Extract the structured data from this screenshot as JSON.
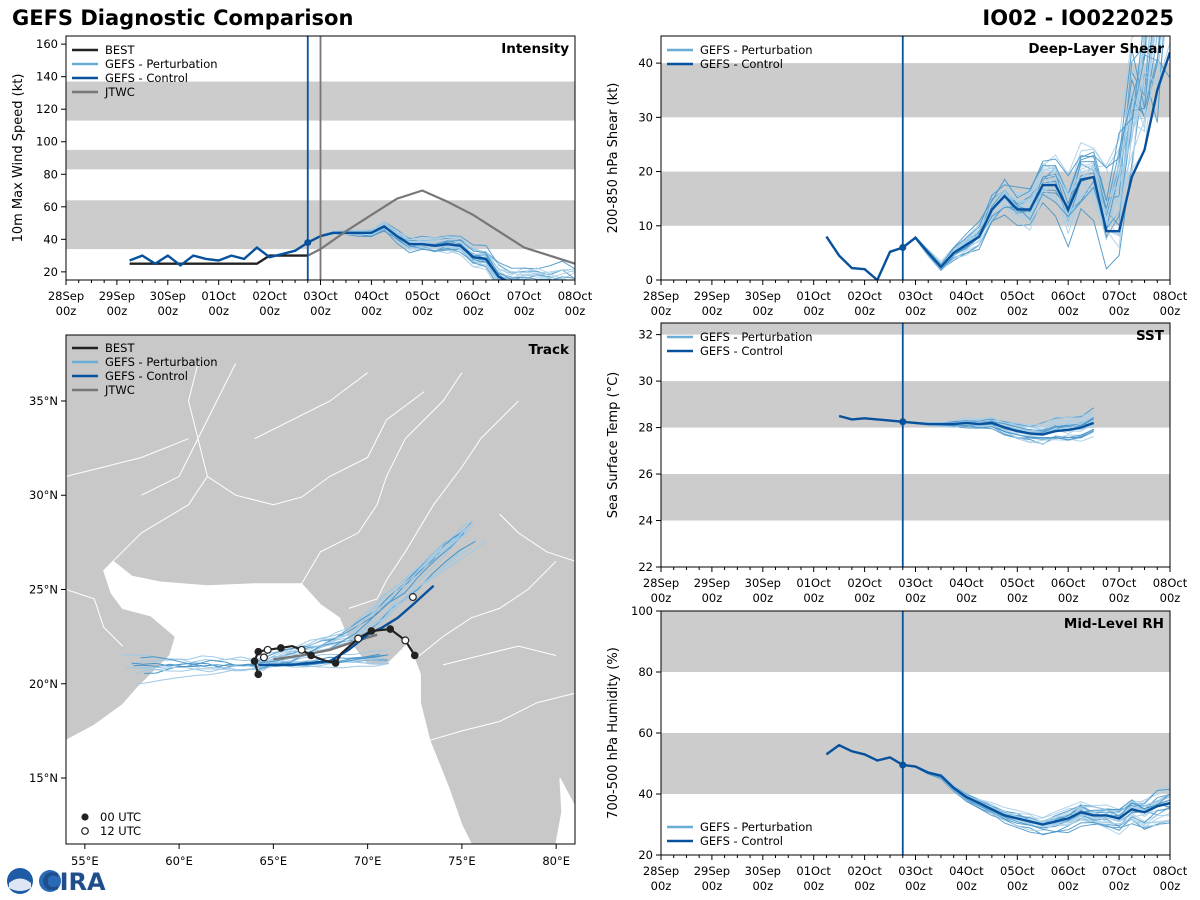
{
  "header": {
    "title": "GEFS Diagnostic Comparison",
    "storm_id": "IO02 - IO022025"
  },
  "logo": {
    "label": "CIRA"
  },
  "time_axis": {
    "labels": [
      "28Sep\n00z",
      "29Sep\n00z",
      "30Sep\n00z",
      "01Oct\n00z",
      "02Oct\n00z",
      "03Oct\n00z",
      "04Oct\n00z",
      "05Oct\n00z",
      "06Oct\n00z",
      "07Oct\n00z",
      "08Oct\n00z"
    ],
    "start_day": 0,
    "end_day": 10,
    "current_day": 4.75
  },
  "colors": {
    "best": "#222222",
    "pert": "#6aaed6",
    "control": "#08519c",
    "jtwc": "#777777",
    "band": "#cccccc",
    "land": "#c8c8c8",
    "vline": "#08519c"
  },
  "chart_data": [
    {
      "id": "intensity",
      "type": "line",
      "title": "Intensity",
      "ylabel": "10m Max Wind Speed (kt)",
      "ylim": [
        15,
        165
      ],
      "yticks": [
        20,
        40,
        60,
        80,
        100,
        120,
        140,
        160
      ],
      "bands": [
        [
          34,
          64
        ],
        [
          83,
          95
        ],
        [
          113,
          137
        ]
      ],
      "legend": [
        "BEST",
        "GEFS - Perturbation",
        "GEFS - Control",
        "JTWC"
      ],
      "series": [
        {
          "name": "BEST",
          "x": [
            1.25,
            2.0,
            3.0,
            3.75,
            4.0,
            4.25,
            4.5,
            4.75
          ],
          "y": [
            25,
            25,
            25,
            25,
            30,
            30,
            30,
            30
          ]
        },
        {
          "name": "GEFS - Control",
          "x": [
            1.25,
            1.5,
            1.75,
            2.0,
            2.25,
            2.5,
            2.75,
            3.0,
            3.25,
            3.5,
            3.75,
            4.0,
            4.25,
            4.5,
            4.75,
            5.0,
            5.25,
            5.5,
            5.75,
            6.0,
            6.25,
            6.5,
            6.75,
            7.0,
            7.25,
            7.5,
            7.75,
            8.0,
            8.25,
            8.5,
            8.75,
            9.0,
            9.25,
            9.5,
            9.75,
            10.0
          ],
          "y": [
            27,
            30,
            25,
            30,
            24,
            30,
            28,
            27,
            30,
            28,
            35,
            29,
            31,
            33,
            38,
            42,
            44,
            44,
            44,
            44,
            48,
            42,
            37,
            37,
            36,
            37,
            36,
            29,
            28,
            17,
            13,
            14,
            13,
            12,
            11,
            10
          ]
        },
        {
          "name": "JTWC",
          "x": [
            4.75,
            5.0,
            5.5,
            6.0,
            6.5,
            7.0,
            7.5,
            8.0,
            8.5,
            9.0,
            9.5,
            10.0
          ],
          "y": [
            30,
            34,
            45,
            55,
            65,
            70,
            63,
            55,
            45,
            35,
            30,
            25
          ]
        }
      ],
      "best_start": 1.25
    },
    {
      "id": "shear",
      "type": "line",
      "title": "Deep-Layer Shear",
      "ylabel": "200-850 hPa Shear (kt)",
      "ylim": [
        0,
        45
      ],
      "yticks": [
        0,
        10,
        20,
        30,
        40
      ],
      "bands": [
        [
          10,
          20
        ],
        [
          30,
          40
        ]
      ],
      "legend": [
        "GEFS - Perturbation",
        "GEFS - Control"
      ],
      "series": [
        {
          "name": "GEFS - Control",
          "x": [
            3.25,
            3.5,
            3.75,
            4.0,
            4.25,
            4.5,
            4.75,
            5.0,
            5.25,
            5.5,
            5.75,
            6.0,
            6.25,
            6.5,
            6.75,
            7.0,
            7.25,
            7.5,
            7.75,
            8.0,
            8.25,
            8.5,
            8.75,
            9.0,
            9.25,
            9.5,
            9.75,
            10.0
          ],
          "y": [
            8,
            4.5,
            2.2,
            2,
            0,
            5.2,
            6,
            7.8,
            5,
            2.4,
            5,
            6.5,
            8,
            13,
            15.5,
            13,
            13,
            17.5,
            17.5,
            13,
            18.5,
            19,
            9,
            9,
            19,
            24,
            35,
            42
          ]
        }
      ]
    },
    {
      "id": "sst",
      "type": "line",
      "title": "SST",
      "ylabel": "Sea Surface Temp (°C)",
      "ylim": [
        22,
        32.5
      ],
      "yticks": [
        22,
        24,
        26,
        28,
        30,
        32
      ],
      "bands": [
        [
          24,
          26
        ],
        [
          28,
          30
        ],
        [
          32,
          33
        ]
      ],
      "legend": [
        "GEFS - Perturbation",
        "GEFS - Control"
      ],
      "series": [
        {
          "name": "GEFS - Control",
          "x": [
            3.5,
            3.75,
            4.0,
            4.25,
            4.5,
            4.75,
            5.0,
            5.25,
            5.5,
            5.75,
            6.0,
            6.25,
            6.5,
            6.75,
            7.0,
            7.25,
            7.5,
            7.75,
            8.0,
            8.25,
            8.5
          ],
          "y": [
            28.5,
            28.35,
            28.4,
            28.35,
            28.3,
            28.25,
            28.2,
            28.15,
            28.15,
            28.15,
            28.2,
            28.15,
            28.2,
            28.0,
            27.85,
            27.75,
            27.7,
            27.85,
            27.9,
            28.0,
            28.2
          ]
        }
      ]
    },
    {
      "id": "rh",
      "type": "line",
      "title": "Mid-Level RH",
      "ylabel": "700-500 hPa Humidity (%)",
      "ylim": [
        20,
        100
      ],
      "yticks": [
        20,
        40,
        60,
        80,
        100
      ],
      "bands": [
        [
          40,
          60
        ],
        [
          80,
          100
        ]
      ],
      "legend": [
        "GEFS - Perturbation",
        "GEFS - Control"
      ],
      "series": [
        {
          "name": "GEFS - Control",
          "x": [
            3.25,
            3.5,
            3.75,
            4.0,
            4.25,
            4.5,
            4.75,
            5.0,
            5.25,
            5.5,
            5.75,
            6.0,
            6.25,
            6.5,
            6.75,
            7.0,
            7.25,
            7.5,
            7.75,
            8.0,
            8.25,
            8.5,
            8.75,
            9.0,
            9.25,
            9.5,
            9.75,
            10.0
          ],
          "y": [
            53,
            56,
            54,
            53,
            51,
            52,
            49.5,
            49,
            47,
            46,
            42,
            39,
            37,
            35,
            33,
            32,
            31,
            30,
            31,
            32,
            34,
            33,
            33,
            32,
            35,
            34,
            36,
            37
          ]
        }
      ]
    },
    {
      "id": "track",
      "type": "map",
      "title": "Track",
      "lon_range": [
        54,
        81
      ],
      "lat_range": [
        11.5,
        38.5
      ],
      "xticks": [
        "55°E",
        "60°E",
        "65°E",
        "70°E",
        "75°E",
        "80°E"
      ],
      "yticks": [
        "15°N",
        "20°N",
        "25°N",
        "30°N",
        "35°N"
      ],
      "legend": [
        "BEST",
        "GEFS - Perturbation",
        "GEFS - Control",
        "JTWC"
      ],
      "marker_legend": [
        "00 UTC",
        "12 UTC"
      ],
      "best_track": [
        [
          72.5,
          21.5
        ],
        [
          72.0,
          22.3
        ],
        [
          71.2,
          22.9
        ],
        [
          70.2,
          22.8
        ],
        [
          69.5,
          22.4
        ],
        [
          68.6,
          21.6
        ],
        [
          68.3,
          21.1
        ],
        [
          67.8,
          21.2
        ],
        [
          67.0,
          21.5
        ],
        [
          66.5,
          21.8
        ],
        [
          66.0,
          22.0
        ],
        [
          65.4,
          21.9
        ],
        [
          64.7,
          21.8
        ],
        [
          64.2,
          21.7
        ],
        [
          64.0,
          21.2
        ],
        [
          64.2,
          20.5
        ]
      ],
      "best_points_00": [
        [
          72.5,
          21.5
        ],
        [
          71.2,
          22.9
        ],
        [
          70.2,
          22.8
        ],
        [
          68.3,
          21.1
        ],
        [
          67.0,
          21.5
        ],
        [
          65.4,
          21.9
        ],
        [
          64.2,
          21.7
        ],
        [
          64.2,
          20.5
        ],
        [
          64.0,
          21.2
        ]
      ],
      "best_points_12": [
        [
          72.0,
          22.3
        ],
        [
          69.5,
          22.4
        ],
        [
          66.5,
          21.8
        ],
        [
          64.7,
          21.8
        ],
        [
          64.5,
          21.4
        ]
      ],
      "control_track": [
        [
          64.2,
          21.0
        ],
        [
          65.0,
          21.0
        ],
        [
          66.0,
          21.0
        ],
        [
          67.0,
          21.1
        ],
        [
          68.0,
          21.2
        ],
        [
          69.0,
          21.8
        ],
        [
          70.0,
          22.6
        ],
        [
          70.8,
          23.0
        ],
        [
          71.6,
          23.5
        ],
        [
          72.4,
          24.2
        ],
        [
          73.5,
          25.2
        ]
      ],
      "jtwc_track": [
        [
          65.0,
          21.3
        ],
        [
          66.5,
          21.5
        ],
        [
          68.0,
          21.8
        ],
        [
          69.5,
          22.3
        ],
        [
          70.5,
          22.6
        ]
      ]
    }
  ]
}
